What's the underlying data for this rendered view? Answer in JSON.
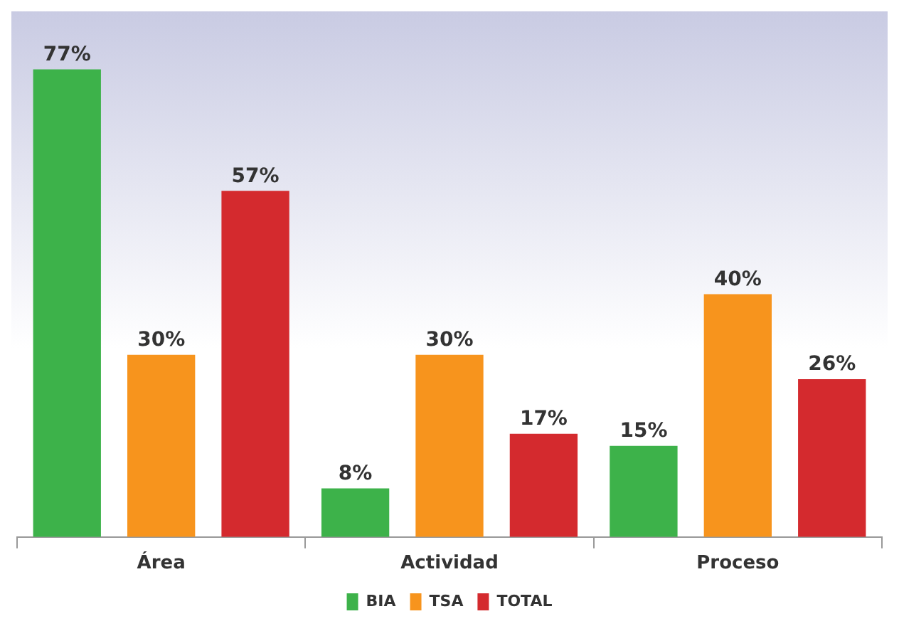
{
  "chart_data": {
    "type": "bar",
    "categories": [
      "Área",
      "Actividad",
      "Proceso"
    ],
    "series": [
      {
        "name": "BIA",
        "color": "#3db24a",
        "values": [
          77,
          8,
          15
        ],
        "value_labels": [
          "77%",
          "8%",
          "15%"
        ]
      },
      {
        "name": "TSA",
        "color": "#f7941d",
        "values": [
          30,
          30,
          40
        ],
        "value_labels": [
          "30%",
          "30%",
          "40%"
        ]
      },
      {
        "name": "TOTAL",
        "color": "#d42a2e",
        "values": [
          57,
          17,
          26
        ],
        "value_labels": [
          "57%",
          "17%",
          "26%"
        ]
      }
    ],
    "legend": "bottom",
    "grid": false
  }
}
